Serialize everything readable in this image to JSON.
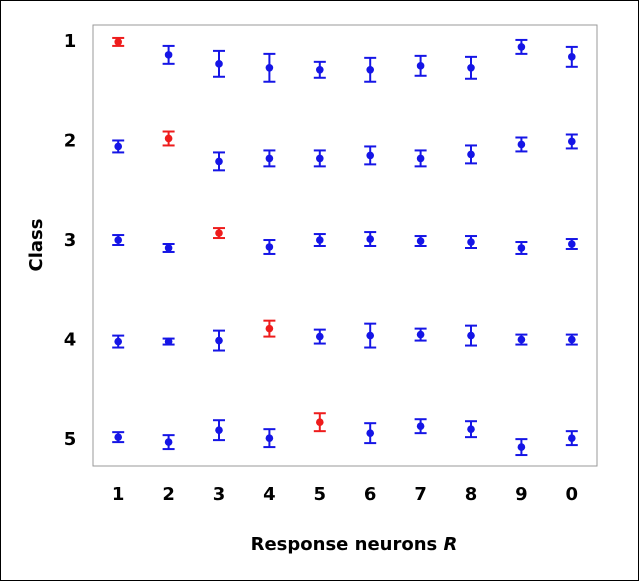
{
  "chart_data": {
    "type": "errorbar",
    "xlabel": "Response neurons",
    "xlabel_italic": "R",
    "ylabel": "Class",
    "categories": [
      "1",
      "2",
      "3",
      "4",
      "5",
      "6",
      "7",
      "8",
      "9",
      "0"
    ],
    "ylim": [
      5.26,
      0.83
    ],
    "yticks": [
      1,
      2,
      3,
      4,
      5
    ],
    "series": [
      {
        "values": [
          1.0,
          1.13,
          1.22,
          1.26,
          1.28,
          1.28,
          1.24,
          1.26,
          1.05,
          1.15
        ],
        "errors": [
          0.04,
          0.09,
          0.13,
          0.14,
          0.08,
          0.12,
          0.1,
          0.11,
          0.07,
          0.1
        ],
        "colors": [
          "#ee1c1c",
          "#1515e6",
          "#1515e6",
          "#1515e6",
          "#1515e6",
          "#1515e6",
          "#1515e6",
          "#1515e6",
          "#1515e6",
          "#1515e6"
        ]
      },
      {
        "values": [
          2.05,
          1.97,
          2.2,
          2.17,
          2.17,
          2.14,
          2.17,
          2.13,
          2.03,
          2.0
        ],
        "errors": [
          0.06,
          0.07,
          0.09,
          0.08,
          0.08,
          0.09,
          0.08,
          0.09,
          0.07,
          0.07
        ],
        "colors": [
          "#1515e6",
          "#ee1c1c",
          "#1515e6",
          "#1515e6",
          "#1515e6",
          "#1515e6",
          "#1515e6",
          "#1515e6",
          "#1515e6",
          "#1515e6"
        ]
      },
      {
        "values": [
          2.99,
          3.07,
          2.92,
          3.06,
          2.99,
          2.98,
          3.0,
          3.01,
          3.07,
          3.03
        ],
        "errors": [
          0.05,
          0.04,
          0.05,
          0.07,
          0.06,
          0.07,
          0.05,
          0.06,
          0.06,
          0.05
        ],
        "colors": [
          "#1515e6",
          "#1515e6",
          "#ee1c1c",
          "#1515e6",
          "#1515e6",
          "#1515e6",
          "#1515e6",
          "#1515e6",
          "#1515e6",
          "#1515e6"
        ]
      },
      {
        "values": [
          4.01,
          4.01,
          4.0,
          3.88,
          3.96,
          3.95,
          3.94,
          3.95,
          3.99,
          3.99
        ],
        "errors": [
          0.06,
          0.03,
          0.1,
          0.08,
          0.07,
          0.12,
          0.06,
          0.1,
          0.05,
          0.05
        ],
        "colors": [
          "#1515e6",
          "#1515e6",
          "#1515e6",
          "#ee1c1c",
          "#1515e6",
          "#1515e6",
          "#1515e6",
          "#1515e6",
          "#1515e6",
          "#1515e6"
        ]
      },
      {
        "values": [
          4.97,
          5.02,
          4.9,
          4.98,
          4.82,
          4.93,
          4.86,
          4.89,
          5.07,
          4.98
        ],
        "errors": [
          0.05,
          0.07,
          0.1,
          0.09,
          0.09,
          0.1,
          0.07,
          0.08,
          0.08,
          0.07
        ],
        "colors": [
          "#1515e6",
          "#1515e6",
          "#1515e6",
          "#1515e6",
          "#ee1c1c",
          "#1515e6",
          "#1515e6",
          "#1515e6",
          "#1515e6",
          "#1515e6"
        ]
      }
    ]
  }
}
